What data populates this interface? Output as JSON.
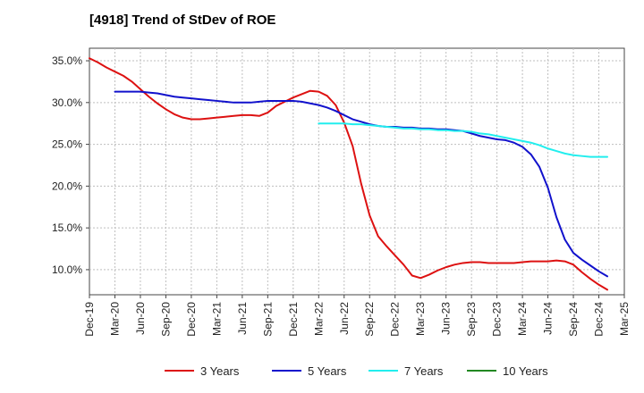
{
  "chart_data": {
    "type": "line",
    "title": "[4918]  Trend of StDev of ROE",
    "xlabel": "",
    "ylabel": "",
    "ylim": [
      7.0,
      36.5
    ],
    "grid": true,
    "legend_position": "bottom",
    "x_ticks": [
      "Dec-19",
      "Mar-20",
      "Jun-20",
      "Sep-20",
      "Dec-20",
      "Mar-21",
      "Jun-21",
      "Sep-21",
      "Dec-21",
      "Mar-22",
      "Jun-22",
      "Sep-22",
      "Dec-22",
      "Mar-23",
      "Jun-23",
      "Sep-23",
      "Dec-23",
      "Mar-24",
      "Jun-24",
      "Sep-24",
      "Dec-24",
      "Mar-25"
    ],
    "y_ticks": [
      "10.0%",
      "15.0%",
      "20.0%",
      "25.0%",
      "30.0%",
      "35.0%"
    ],
    "y_tick_values": [
      10,
      15,
      20,
      25,
      30,
      35
    ],
    "series": [
      {
        "name": "3 Years",
        "color": "#dd1111",
        "points": [
          [
            "Dec-19",
            35.3
          ],
          [
            "Jan-20",
            34.8
          ],
          [
            "Feb-20",
            34.2
          ],
          [
            "Mar-20",
            33.7
          ],
          [
            "Apr-20",
            33.2
          ],
          [
            "May-20",
            32.5
          ],
          [
            "Jun-20",
            31.6
          ],
          [
            "Jul-20",
            30.7
          ],
          [
            "Aug-20",
            29.9
          ],
          [
            "Sep-20",
            29.2
          ],
          [
            "Oct-20",
            28.6
          ],
          [
            "Nov-20",
            28.2
          ],
          [
            "Dec-20",
            28.0
          ],
          [
            "Jan-21",
            28.0
          ],
          [
            "Feb-21",
            28.1
          ],
          [
            "Mar-21",
            28.2
          ],
          [
            "Apr-21",
            28.3
          ],
          [
            "May-21",
            28.4
          ],
          [
            "Jun-21",
            28.5
          ],
          [
            "Jul-21",
            28.5
          ],
          [
            "Aug-21",
            28.4
          ],
          [
            "Sep-21",
            28.8
          ],
          [
            "Oct-21",
            29.6
          ],
          [
            "Nov-21",
            30.1
          ],
          [
            "Dec-21",
            30.6
          ],
          [
            "Jan-22",
            31.0
          ],
          [
            "Feb-22",
            31.4
          ],
          [
            "Mar-22",
            31.3
          ],
          [
            "Apr-22",
            30.8
          ],
          [
            "May-22",
            29.7
          ],
          [
            "Jun-22",
            27.6
          ],
          [
            "Jul-22",
            24.8
          ],
          [
            "Aug-22",
            20.3
          ],
          [
            "Sep-22",
            16.5
          ],
          [
            "Oct-22",
            14.0
          ],
          [
            "Nov-22",
            12.8
          ],
          [
            "Dec-22",
            11.7
          ],
          [
            "Jan-23",
            10.6
          ],
          [
            "Feb-23",
            9.3
          ],
          [
            "Mar-23",
            9.0
          ],
          [
            "Apr-23",
            9.4
          ],
          [
            "May-23",
            9.9
          ],
          [
            "Jun-23",
            10.3
          ],
          [
            "Jul-23",
            10.6
          ],
          [
            "Aug-23",
            10.8
          ],
          [
            "Sep-23",
            10.9
          ],
          [
            "Oct-23",
            10.9
          ],
          [
            "Nov-23",
            10.8
          ],
          [
            "Dec-23",
            10.8
          ],
          [
            "Jan-24",
            10.8
          ],
          [
            "Feb-24",
            10.8
          ],
          [
            "Mar-24",
            10.9
          ],
          [
            "Apr-24",
            11.0
          ],
          [
            "May-24",
            11.0
          ],
          [
            "Jun-24",
            11.0
          ],
          [
            "Jul-24",
            11.1
          ],
          [
            "Aug-24",
            11.0
          ],
          [
            "Sep-24",
            10.6
          ],
          [
            "Oct-24",
            9.7
          ],
          [
            "Nov-24",
            8.9
          ],
          [
            "Dec-24",
            8.2
          ],
          [
            "Jan-25",
            7.6
          ]
        ]
      },
      {
        "name": "5 Years",
        "color": "#1111cc",
        "points": [
          [
            "Mar-20",
            31.3
          ],
          [
            "Apr-20",
            31.3
          ],
          [
            "May-20",
            31.3
          ],
          [
            "Jun-20",
            31.3
          ],
          [
            "Jul-20",
            31.2
          ],
          [
            "Aug-20",
            31.1
          ],
          [
            "Sep-20",
            30.9
          ],
          [
            "Oct-20",
            30.7
          ],
          [
            "Nov-20",
            30.6
          ],
          [
            "Dec-20",
            30.5
          ],
          [
            "Jan-21",
            30.4
          ],
          [
            "Feb-21",
            30.3
          ],
          [
            "Mar-21",
            30.2
          ],
          [
            "Apr-21",
            30.1
          ],
          [
            "May-21",
            30.0
          ],
          [
            "Jun-21",
            30.0
          ],
          [
            "Jul-21",
            30.0
          ],
          [
            "Aug-21",
            30.1
          ],
          [
            "Sep-21",
            30.2
          ],
          [
            "Oct-21",
            30.2
          ],
          [
            "Nov-21",
            30.2
          ],
          [
            "Dec-21",
            30.2
          ],
          [
            "Jan-22",
            30.1
          ],
          [
            "Feb-22",
            29.9
          ],
          [
            "Mar-22",
            29.7
          ],
          [
            "Apr-22",
            29.4
          ],
          [
            "May-22",
            29.0
          ],
          [
            "Jun-22",
            28.5
          ],
          [
            "Jul-22",
            28.0
          ],
          [
            "Aug-22",
            27.7
          ],
          [
            "Sep-22",
            27.4
          ],
          [
            "Oct-22",
            27.2
          ],
          [
            "Nov-22",
            27.1
          ],
          [
            "Dec-22",
            27.1
          ],
          [
            "Jan-23",
            27.0
          ],
          [
            "Feb-23",
            27.0
          ],
          [
            "Mar-23",
            26.9
          ],
          [
            "Apr-23",
            26.9
          ],
          [
            "May-23",
            26.8
          ],
          [
            "Jun-23",
            26.8
          ],
          [
            "Jul-23",
            26.7
          ],
          [
            "Aug-23",
            26.6
          ],
          [
            "Sep-23",
            26.3
          ],
          [
            "Oct-23",
            26.0
          ],
          [
            "Nov-23",
            25.8
          ],
          [
            "Dec-23",
            25.6
          ],
          [
            "Jan-24",
            25.5
          ],
          [
            "Feb-24",
            25.2
          ],
          [
            "Mar-24",
            24.7
          ],
          [
            "Apr-24",
            23.8
          ],
          [
            "May-24",
            22.3
          ],
          [
            "Jun-24",
            19.8
          ],
          [
            "Jul-24",
            16.3
          ],
          [
            "Aug-24",
            13.6
          ],
          [
            "Sep-24",
            12.0
          ],
          [
            "Oct-24",
            11.2
          ],
          [
            "Nov-24",
            10.5
          ],
          [
            "Dec-24",
            9.8
          ],
          [
            "Jan-25",
            9.2
          ]
        ]
      },
      {
        "name": "7 Years",
        "color": "#22eeee",
        "points": [
          [
            "Mar-22",
            27.5
          ],
          [
            "Apr-22",
            27.5
          ],
          [
            "May-22",
            27.5
          ],
          [
            "Jun-22",
            27.5
          ],
          [
            "Jul-22",
            27.4
          ],
          [
            "Aug-22",
            27.4
          ],
          [
            "Sep-22",
            27.3
          ],
          [
            "Oct-22",
            27.2
          ],
          [
            "Nov-22",
            27.1
          ],
          [
            "Dec-22",
            27.0
          ],
          [
            "Jan-23",
            26.9
          ],
          [
            "Feb-23",
            26.9
          ],
          [
            "Mar-23",
            26.8
          ],
          [
            "Apr-23",
            26.8
          ],
          [
            "May-23",
            26.7
          ],
          [
            "Jun-23",
            26.7
          ],
          [
            "Jul-23",
            26.6
          ],
          [
            "Aug-23",
            26.6
          ],
          [
            "Sep-23",
            26.5
          ],
          [
            "Oct-23",
            26.3
          ],
          [
            "Nov-23",
            26.2
          ],
          [
            "Dec-23",
            26.0
          ],
          [
            "Jan-24",
            25.8
          ],
          [
            "Feb-24",
            25.6
          ],
          [
            "Mar-24",
            25.4
          ],
          [
            "Apr-24",
            25.2
          ],
          [
            "May-24",
            24.9
          ],
          [
            "Jun-24",
            24.5
          ],
          [
            "Jul-24",
            24.2
          ],
          [
            "Aug-24",
            23.9
          ],
          [
            "Sep-24",
            23.7
          ],
          [
            "Oct-24",
            23.6
          ],
          [
            "Nov-24",
            23.5
          ],
          [
            "Dec-24",
            23.5
          ],
          [
            "Jan-25",
            23.5
          ]
        ]
      },
      {
        "name": "10 Years",
        "color": "#228822",
        "points": []
      }
    ]
  }
}
